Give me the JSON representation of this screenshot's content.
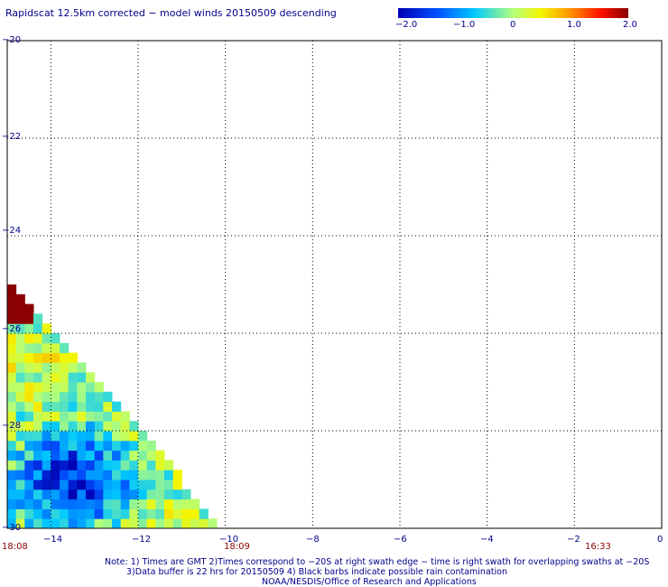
{
  "title": "Rapidscat 12.5km corrected − model winds 20150509 descending",
  "colorbar": {
    "ticks": [
      "−2.0",
      "−1.0",
      "0",
      "1.0",
      "2.0"
    ],
    "range": [
      -2.0,
      2.0
    ]
  },
  "notes": {
    "line1": "Note: 1) Times are GMT 2)Times correspond to −20S at right swath edge − time is right swath for overlapping swaths at −20S",
    "line2": "3)Data buffer is 22 hrs for 20150509 4) Black barbs indicate possible rain contamination",
    "line3": "NOAA/NESDIS/Office of Research and Applications"
  },
  "chart_data": {
    "type": "heatmap",
    "title": "Rapidscat 12.5km corrected − model winds 20150509 descending",
    "xlabel": "",
    "ylabel": "",
    "xlim": [
      -15,
      0
    ],
    "ylim": [
      -30,
      -20
    ],
    "x_ticks": [
      "−14",
      "−12",
      "−10",
      "−8",
      "−6",
      "−4",
      "−2",
      "0"
    ],
    "y_ticks": [
      "−20",
      "−22",
      "−24",
      "−26",
      "−28",
      "−30"
    ],
    "grid": true,
    "colorscale": [
      "#0000b4",
      "#0050ff",
      "#00e0ff",
      "#f5f500",
      "#ff8000",
      "#ff0000",
      "#8b0000"
    ],
    "value_range": [
      -2.0,
      2.0
    ],
    "time_labels": [
      {
        "text": "18:08",
        "x": -15
      },
      {
        "text": "18:09",
        "x": -10
      },
      {
        "text": "16:33",
        "x": -1.5
      }
    ]
  }
}
